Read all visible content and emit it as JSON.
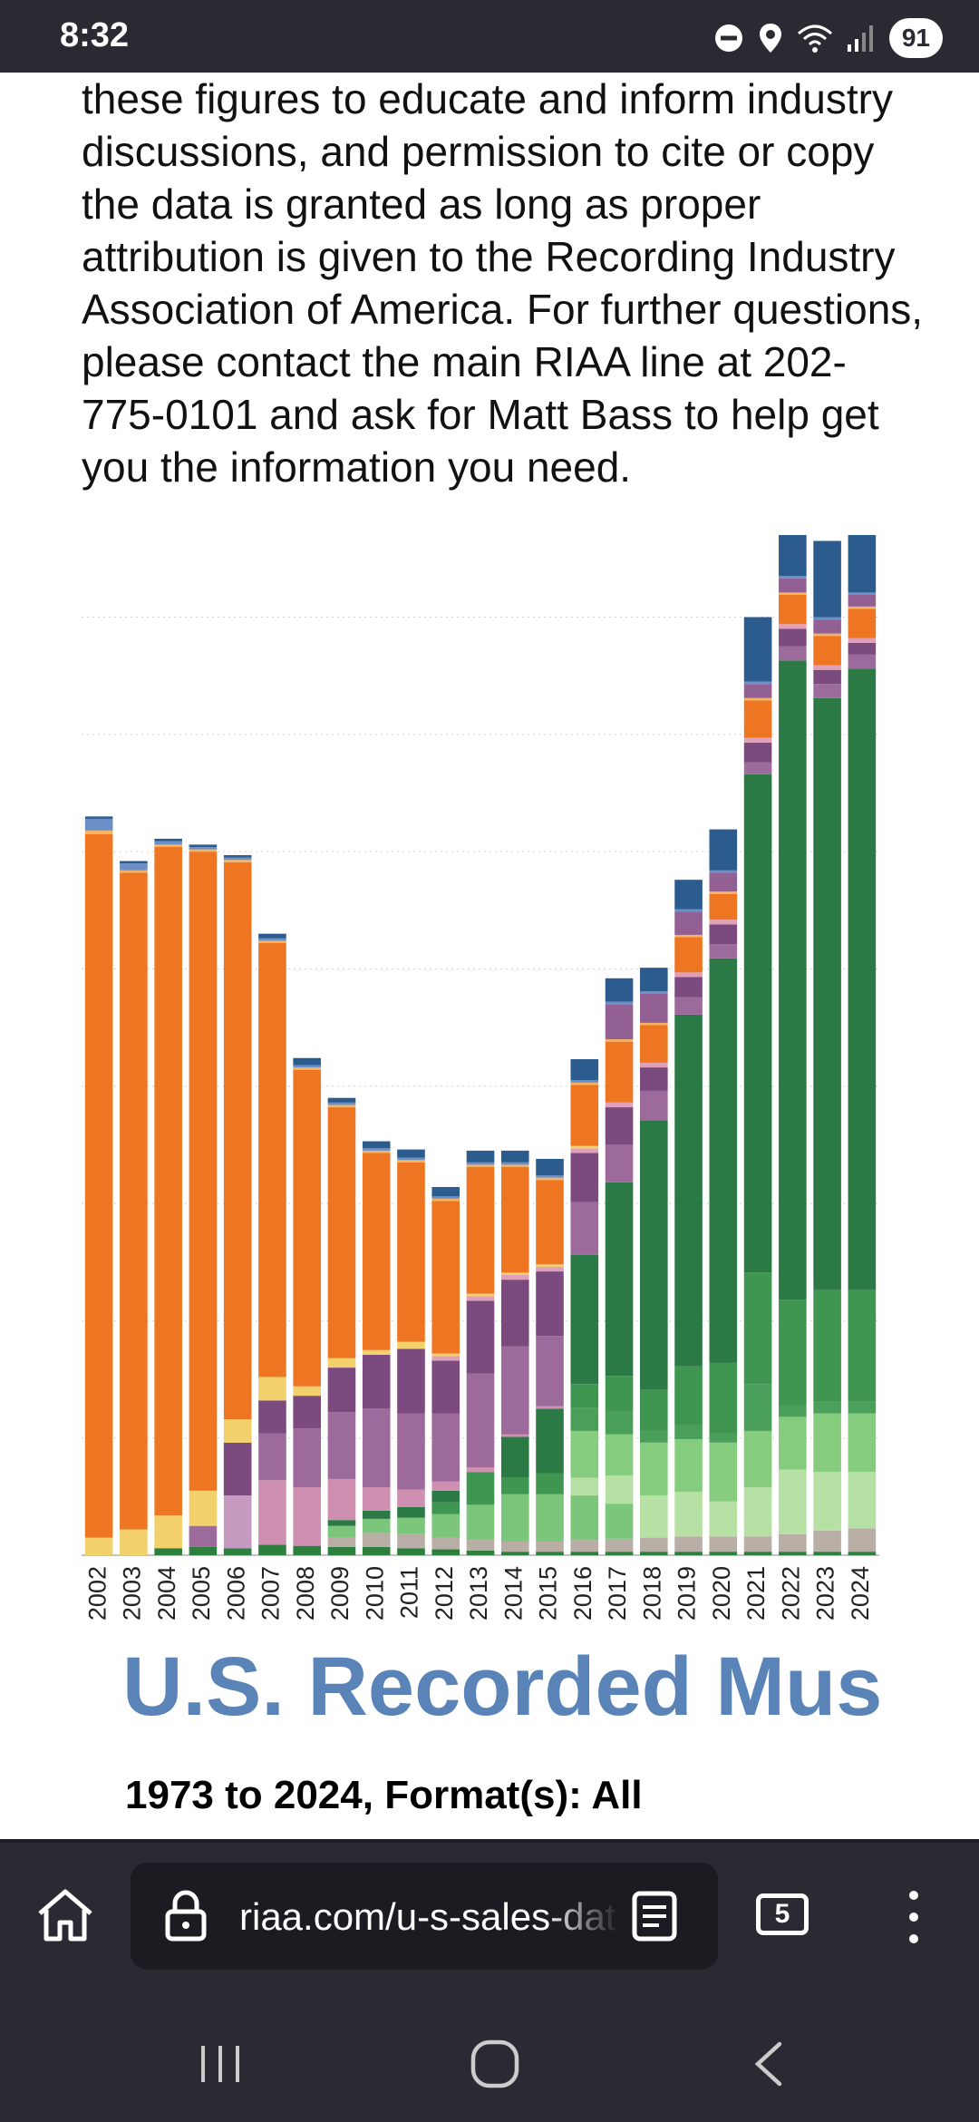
{
  "status_bar": {
    "time": "8:32",
    "battery": "91"
  },
  "article": {
    "paragraph": "these figures to educate and inform industry discussions, and permission to cite or copy the data is granted as long as proper attribution is given to the Recording Industry Association of America. For further questions, please contact the main RIAA line at 202-775-0101 and ask for Matt Bass to help get you the information you need."
  },
  "chart_data": {
    "type": "bar",
    "stacked": true,
    "title": "U.S. Recorded Mus",
    "subtitle": "1973 to 2024, Format(s): All",
    "ylim": [
      0,
      870
    ],
    "grid": true,
    "categories": [
      "2002",
      "2003",
      "2004",
      "2005",
      "2006",
      "2007",
      "2008",
      "2009",
      "2010",
      "2011",
      "2012",
      "2013",
      "2014",
      "2015",
      "2016",
      "2017",
      "2018",
      "2019",
      "2020",
      "2021",
      "2022",
      "2023",
      "2024"
    ],
    "series": [
      {
        "color": "#b8aea8",
        "values": [
          0,
          0,
          0,
          0,
          0,
          0,
          0,
          0,
          0,
          0,
          0,
          0,
          0,
          0,
          0,
          0,
          0,
          0,
          0,
          0,
          0,
          0,
          0
        ]
      },
      {
        "color": "#2d7f3e",
        "values": [
          0,
          0,
          6,
          7,
          6,
          9,
          8,
          7,
          7,
          6,
          5,
          4,
          3,
          3,
          3,
          3,
          3,
          3,
          3,
          3,
          3,
          3,
          3
        ]
      },
      {
        "color": "#b9aea6",
        "values": [
          0,
          0,
          0,
          0,
          0,
          0,
          0,
          8,
          12,
          12,
          10,
          9,
          9,
          9,
          10,
          11,
          12,
          13,
          13,
          13,
          15,
          18,
          20
        ]
      },
      {
        "color": "#7bc67a",
        "values": [
          0,
          0,
          0,
          0,
          0,
          0,
          0,
          10,
          12,
          14,
          20,
          30,
          40,
          40,
          38,
          30,
          0,
          0,
          0,
          0,
          0,
          0,
          0
        ]
      },
      {
        "color": "#b7e0a4",
        "values": [
          0,
          0,
          0,
          0,
          0,
          0,
          0,
          0,
          0,
          0,
          0,
          0,
          0,
          0,
          15,
          24,
          36,
          38,
          30,
          42,
          55,
          50,
          48
        ]
      },
      {
        "color": "#86cc7f",
        "values": [
          0,
          0,
          0,
          0,
          0,
          0,
          0,
          0,
          0,
          0,
          0,
          0,
          0,
          0,
          40,
          35,
          45,
          45,
          50,
          48,
          45,
          50,
          50
        ]
      },
      {
        "color": "#4aa05a",
        "values": [
          0,
          0,
          0,
          0,
          0,
          0,
          0,
          0,
          0,
          0,
          0,
          0,
          0,
          0,
          20,
          20,
          10,
          12,
          8,
          40,
          10,
          10,
          10
        ]
      },
      {
        "color": "#3e9650",
        "values": [
          0,
          0,
          0,
          0,
          0,
          0,
          0,
          0,
          0,
          0,
          10,
          28,
          14,
          18,
          20,
          30,
          35,
          50,
          60,
          95,
          90,
          95,
          95
        ]
      },
      {
        "color": "#2b7a45",
        "values": [
          0,
          0,
          0,
          0,
          0,
          0,
          0,
          5,
          7,
          9,
          10,
          0,
          35,
          55,
          110,
          165,
          230,
          300,
          345,
          425,
          545,
          505,
          530
        ]
      },
      {
        "color": "#cf8fb0",
        "values": [
          0,
          0,
          0,
          0,
          0,
          55,
          50,
          35,
          20,
          15,
          8,
          4,
          2,
          2,
          0,
          0,
          0,
          0,
          0,
          0,
          0,
          0,
          0
        ]
      },
      {
        "color": "#c69ac0",
        "values": [
          0,
          0,
          0,
          0,
          45,
          0,
          0,
          0,
          0,
          0,
          0,
          0,
          0,
          0,
          0,
          0,
          0,
          0,
          0,
          0,
          0,
          0,
          0
        ]
      },
      {
        "color": "#9d6b9b",
        "values": [
          0,
          0,
          0,
          18,
          0,
          40,
          50,
          57,
          67,
          65,
          58,
          80,
          75,
          60,
          45,
          32,
          25,
          15,
          12,
          10,
          12,
          12,
          12
        ]
      },
      {
        "color": "#7b4a7f",
        "values": [
          0,
          0,
          0,
          0,
          45,
          28,
          28,
          38,
          46,
          55,
          45,
          62,
          57,
          55,
          42,
          32,
          20,
          17,
          17,
          17,
          15,
          12,
          10
        ]
      },
      {
        "color": "#e0a0b8",
        "values": [
          0,
          0,
          0,
          0,
          0,
          0,
          0,
          0,
          0,
          0,
          4,
          4,
          4,
          4,
          4,
          4,
          4,
          4,
          4,
          4,
          4,
          4,
          4
        ]
      },
      {
        "color": "#f2d06b",
        "values": [
          15,
          22,
          28,
          30,
          20,
          20,
          8,
          8,
          4,
          6,
          2,
          2,
          2,
          2,
          2,
          0,
          0,
          0,
          0,
          0,
          0,
          0,
          0
        ]
      },
      {
        "color": "#ee7623",
        "values": [
          600,
          560,
          570,
          545,
          475,
          370,
          270,
          214,
          168,
          153,
          130,
          108,
          90,
          72,
          52,
          52,
          32,
          30,
          22,
          32,
          25,
          25,
          25
        ]
      },
      {
        "color": "#f4b262",
        "values": [
          3,
          2,
          2,
          2,
          2,
          2,
          2,
          2,
          2,
          2,
          2,
          2,
          2,
          2,
          2,
          2,
          2,
          2,
          2,
          2,
          2,
          2,
          2
        ]
      },
      {
        "color": "#936093",
        "values": [
          0,
          0,
          0,
          0,
          0,
          0,
          0,
          0,
          0,
          0,
          0,
          0,
          0,
          0,
          0,
          30,
          25,
          20,
          16,
          12,
          12,
          12,
          10
        ]
      },
      {
        "color": "#c985b3",
        "values": [
          0,
          0,
          0,
          0,
          0,
          0,
          0,
          0,
          0,
          0,
          0,
          0,
          0,
          0,
          0,
          0,
          0,
          0,
          0,
          0,
          0,
          0,
          0
        ]
      },
      {
        "color": "#6b8fc6",
        "values": [
          10,
          6,
          3,
          2,
          2,
          2,
          2,
          2,
          2,
          2,
          2,
          2,
          2,
          2,
          2,
          2,
          2,
          2,
          2,
          2,
          2,
          2,
          2
        ]
      },
      {
        "color": "#2c5b8e",
        "values": [
          2,
          2,
          2,
          2,
          2,
          4,
          6,
          4,
          6,
          7,
          8,
          10,
          10,
          14,
          18,
          20,
          20,
          25,
          35,
          55,
          60,
          65,
          58
        ]
      }
    ]
  },
  "browser": {
    "url": "riaa.com/u-s-sales-database",
    "tabs_count": "5"
  }
}
